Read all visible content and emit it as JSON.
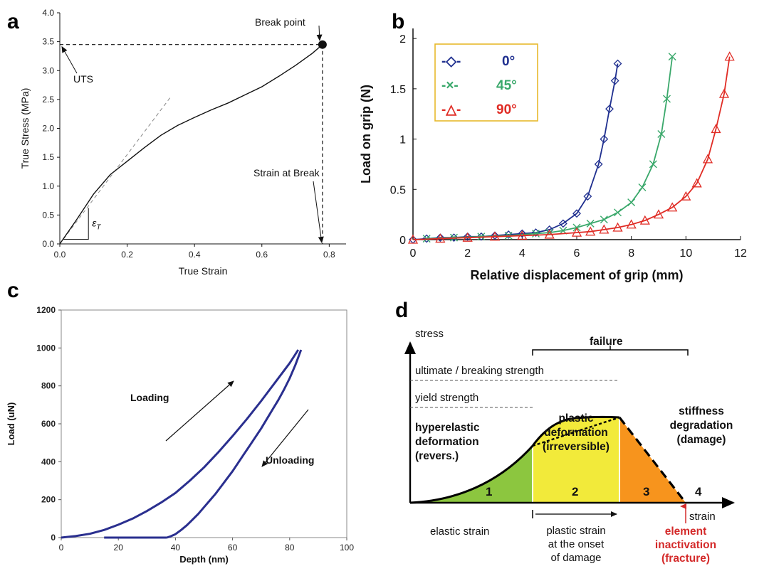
{
  "panels": [
    "a",
    "b",
    "c",
    "d"
  ],
  "chart_data": [
    {
      "panel": "a",
      "type": "line",
      "xlabel": "True Strain",
      "ylabel": "True Stress (MPa)",
      "xlim": [
        0,
        0.85
      ],
      "ylim": [
        0,
        4.0
      ],
      "xticks": [
        "0.0",
        "0.2",
        "0.4",
        "0.6",
        "0.8"
      ],
      "yticks": [
        "0.0",
        "0.5",
        "1.0",
        "1.5",
        "2.0",
        "2.5",
        "3.0",
        "3.5",
        "4.0"
      ],
      "series": [
        {
          "x": [
            0,
            0.05,
            0.1,
            0.15,
            0.2,
            0.25,
            0.3,
            0.35,
            0.4,
            0.45,
            0.5,
            0.55,
            0.6,
            0.65,
            0.7,
            0.75,
            0.78
          ],
          "y": [
            0,
            0.42,
            0.86,
            1.2,
            1.43,
            1.66,
            1.88,
            2.05,
            2.19,
            2.32,
            2.44,
            2.58,
            2.72,
            2.9,
            3.09,
            3.3,
            3.45
          ]
        }
      ],
      "tangent_line": {
        "x": [
          0,
          0.33
        ],
        "y": [
          0,
          2.55
        ]
      },
      "annotations": {
        "break_point": "Break point",
        "uts": "UTS",
        "strain_at_break": "Strain at Break",
        "epsilon": "ε",
        "epsilon_sub": "T"
      },
      "break_x": 0.78,
      "break_y": 3.45
    },
    {
      "panel": "b",
      "type": "scatter",
      "xlabel": "Relative displacement of grip (mm)",
      "ylabel": "Load on grip (N)",
      "xlim": [
        0,
        12
      ],
      "ylim": [
        0,
        2.1
      ],
      "xticks": [
        "0",
        "2",
        "4",
        "6",
        "8",
        "10",
        "12"
      ],
      "yticks": [
        "0",
        "0.5",
        "1",
        "1.5",
        "2"
      ],
      "legend_position": "top-left",
      "series": [
        {
          "name": "0°",
          "marker_label": "-◇-",
          "marker": "diamond",
          "color": "#1f2f8f",
          "x": [
            0,
            0.5,
            1,
            1.5,
            2,
            2.5,
            3,
            3.5,
            4,
            4.5,
            5,
            5.5,
            6,
            6.4,
            6.8,
            7.0,
            7.2,
            7.4,
            7.5
          ],
          "y": [
            0,
            0.01,
            0.02,
            0.02,
            0.03,
            0.03,
            0.04,
            0.05,
            0.06,
            0.07,
            0.1,
            0.16,
            0.26,
            0.43,
            0.75,
            1.0,
            1.3,
            1.58,
            1.75
          ]
        },
        {
          "name": "45°",
          "marker_label": "-×-",
          "marker": "cross",
          "color": "#3aa86b",
          "x": [
            0.5,
            1.5,
            2.5,
            3.5,
            4.5,
            5,
            5.5,
            6,
            6.5,
            7,
            7.5,
            8,
            8.4,
            8.8,
            9.1,
            9.3,
            9.5
          ],
          "y": [
            0.01,
            0.02,
            0.03,
            0.04,
            0.06,
            0.07,
            0.09,
            0.12,
            0.16,
            0.2,
            0.27,
            0.37,
            0.52,
            0.75,
            1.05,
            1.4,
            1.82
          ]
        },
        {
          "name": "90°",
          "marker_label": "-△-",
          "marker": "triangle",
          "color": "#e02c25",
          "x": [
            0,
            1,
            2,
            3,
            4,
            5,
            6,
            6.5,
            7,
            7.5,
            8,
            8.5,
            9,
            9.5,
            10,
            10.4,
            10.8,
            11.1,
            11.4,
            11.6
          ],
          "y": [
            0,
            0.01,
            0.02,
            0.03,
            0.04,
            0.05,
            0.07,
            0.08,
            0.1,
            0.12,
            0.15,
            0.19,
            0.25,
            0.32,
            0.43,
            0.56,
            0.8,
            1.1,
            1.45,
            1.82
          ]
        }
      ]
    },
    {
      "panel": "c",
      "type": "line",
      "xlabel": "Depth (nm)",
      "ylabel": "Load (uN)",
      "xlim": [
        0,
        100
      ],
      "ylim": [
        0,
        1200
      ],
      "xticks": [
        "0",
        "20",
        "40",
        "60",
        "80",
        "100"
      ],
      "yticks": [
        "0",
        "200",
        "400",
        "600",
        "800",
        "1000",
        "1200"
      ],
      "series": [
        {
          "name": "loading",
          "x": [
            0,
            5,
            10,
            15,
            20,
            25,
            30,
            35,
            40,
            45,
            50,
            55,
            60,
            65,
            70,
            75,
            80,
            83
          ],
          "y": [
            0,
            8,
            20,
            40,
            68,
            100,
            140,
            185,
            235,
            300,
            370,
            450,
            535,
            625,
            720,
            820,
            920,
            990
          ]
        },
        {
          "name": "unloading",
          "x": [
            84,
            82,
            80,
            78,
            76,
            74,
            72,
            70,
            68,
            66,
            64,
            62,
            60,
            58,
            56,
            54,
            52,
            50,
            48,
            46,
            44,
            42,
            40,
            38,
            37
          ],
          "y": [
            990,
            910,
            840,
            780,
            725,
            675,
            625,
            575,
            530,
            485,
            440,
            395,
            350,
            310,
            270,
            230,
            195,
            160,
            125,
            95,
            65,
            40,
            18,
            5,
            0
          ]
        },
        {
          "name": "baseline",
          "x": [
            15,
            37
          ],
          "y": [
            0,
            0
          ]
        }
      ],
      "labels": {
        "loading": "Loading",
        "unloading": "Unloading"
      }
    },
    {
      "panel": "d",
      "type": "diagram",
      "axis_labels": {
        "y": "stress",
        "x": "strain"
      },
      "bracket_label": "failure",
      "levels": {
        "ultimate": "ultimate / breaking strength",
        "yield": "yield strength"
      },
      "regions": [
        {
          "number": "1",
          "line1": "hyperelastic",
          "line2": "deformation",
          "line3": "(revers.)",
          "color": "#8cc63f"
        },
        {
          "number": "2",
          "line1": "plastic",
          "line2": "deformation",
          "line3": "(irreversible)",
          "color": "#f2ea3a"
        },
        {
          "number": "3",
          "line1": "stiffness",
          "line2": "degradation",
          "line3": "(damage)",
          "color": "#f7941d"
        },
        {
          "number": "4"
        }
      ],
      "bottom_labels": {
        "elastic": "elastic strain",
        "plastic_1": "plastic strain",
        "plastic_2": "at the onset",
        "plastic_3": "of damage",
        "inactivation_1": "element",
        "inactivation_2": "inactivation",
        "inactivation_3": "(fracture)"
      }
    }
  ]
}
